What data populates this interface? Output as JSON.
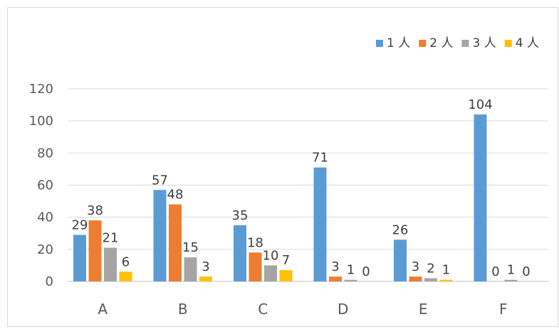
{
  "chart_data": {
    "type": "bar",
    "categories": [
      "A",
      "B",
      "C",
      "D",
      "E",
      "F"
    ],
    "series": [
      {
        "name": "1 人",
        "color": "#5b9bd5",
        "values": [
          29,
          57,
          35,
          71,
          26,
          104
        ]
      },
      {
        "name": "2 人",
        "color": "#ed7d31",
        "values": [
          38,
          48,
          18,
          3,
          3,
          0
        ]
      },
      {
        "name": "3 人",
        "color": "#a5a5a5",
        "values": [
          21,
          15,
          10,
          1,
          2,
          1
        ]
      },
      {
        "name": "4 人",
        "color": "#ffc000",
        "values": [
          6,
          3,
          7,
          0,
          1,
          0
        ]
      }
    ],
    "title": "",
    "xlabel": "",
    "ylabel": "",
    "ylim": [
      0,
      120
    ],
    "yticks": [
      0,
      20,
      40,
      60,
      80,
      100,
      120
    ],
    "grid": true,
    "legend_position": "top-right",
    "data_labels": true
  }
}
